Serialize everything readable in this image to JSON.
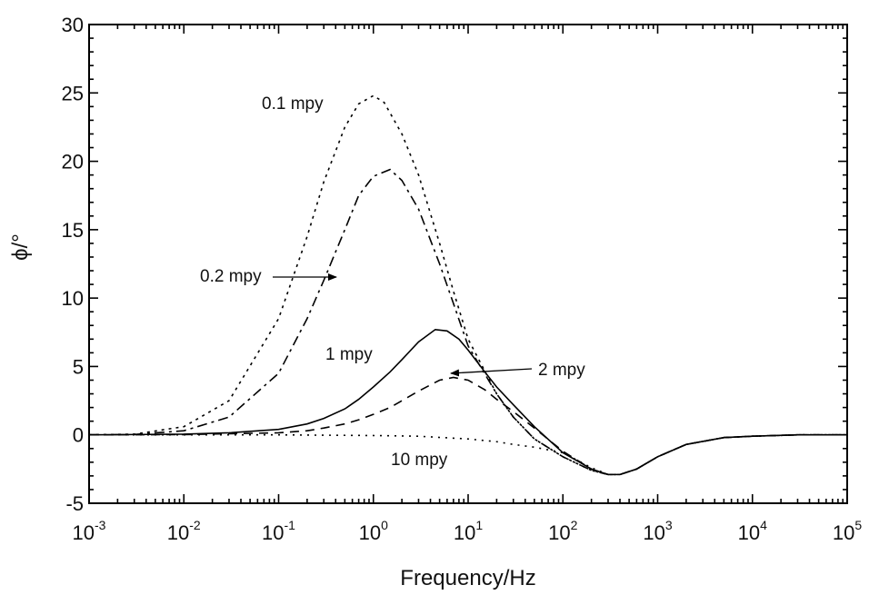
{
  "chart_data": {
    "type": "line",
    "xlabel": "Frequency/Hz",
    "ylabel": "ϕ/°",
    "xscale": "log",
    "xlim": [
      0.001,
      100000
    ],
    "ylim": [
      -5,
      30
    ],
    "grid": false,
    "x_ticks": [
      {
        "base": "10",
        "exp": "-3",
        "value": 0.001
      },
      {
        "base": "10",
        "exp": "-2",
        "value": 0.01
      },
      {
        "base": "10",
        "exp": "-1",
        "value": 0.1
      },
      {
        "base": "10",
        "exp": "0",
        "value": 1
      },
      {
        "base": "10",
        "exp": "1",
        "value": 10
      },
      {
        "base": "10",
        "exp": "2",
        "value": 100
      },
      {
        "base": "10",
        "exp": "3",
        "value": 1000
      },
      {
        "base": "10",
        "exp": "4",
        "value": 10000
      },
      {
        "base": "10",
        "exp": "5",
        "value": 100000
      }
    ],
    "y_ticks": [
      "-5",
      "0",
      "5",
      "10",
      "15",
      "20",
      "25",
      "30"
    ],
    "series": [
      {
        "name": "0.1 mpy",
        "style": "dotted",
        "x": [
          0.001,
          0.003,
          0.01,
          0.03,
          0.1,
          0.2,
          0.3,
          0.5,
          0.7,
          1.0,
          1.3,
          2,
          3,
          5,
          7,
          10,
          20,
          30,
          50,
          100,
          200,
          300,
          400,
          600,
          1000,
          2000,
          5000,
          10000,
          30000,
          100000
        ],
        "y": [
          0,
          0.05,
          0.6,
          2.5,
          8.5,
          14.5,
          18.5,
          22.5,
          24.2,
          24.8,
          24.3,
          22,
          19,
          14,
          10.5,
          7,
          3,
          1.3,
          -0.3,
          -1.6,
          -2.6,
          -2.9,
          -2.9,
          -2.5,
          -1.6,
          -0.7,
          -0.2,
          -0.1,
          0,
          0
        ]
      },
      {
        "name": "0.2 mpy",
        "style": "dash-dot",
        "x": [
          0.001,
          0.003,
          0.01,
          0.03,
          0.1,
          0.2,
          0.3,
          0.5,
          0.7,
          1.0,
          1.5,
          2,
          3,
          5,
          7,
          10,
          20,
          30,
          50,
          100,
          200,
          300,
          400,
          600,
          1000,
          2000,
          5000,
          10000,
          30000,
          100000
        ],
        "y": [
          0,
          0.03,
          0.3,
          1.3,
          4.5,
          8.5,
          11.3,
          15,
          17.5,
          18.9,
          19.4,
          18.6,
          16.5,
          12.5,
          9.6,
          6.5,
          3,
          1.3,
          -0.3,
          -1.6,
          -2.6,
          -2.9,
          -2.9,
          -2.5,
          -1.6,
          -0.7,
          -0.2,
          -0.1,
          0,
          0
        ]
      },
      {
        "name": "1 mpy",
        "style": "solid",
        "x": [
          0.001,
          0.01,
          0.03,
          0.1,
          0.2,
          0.3,
          0.5,
          0.7,
          1.0,
          1.5,
          2,
          3,
          4.5,
          6,
          8,
          10,
          15,
          20,
          30,
          50,
          100,
          200,
          300,
          400,
          600,
          1000,
          2000,
          5000,
          10000,
          30000,
          100000
        ],
        "y": [
          0,
          0.05,
          0.15,
          0.4,
          0.8,
          1.2,
          1.9,
          2.6,
          3.5,
          4.6,
          5.5,
          6.8,
          7.7,
          7.6,
          7,
          6.2,
          4.6,
          3.5,
          2.2,
          0.6,
          -1.3,
          -2.5,
          -2.9,
          -2.9,
          -2.5,
          -1.6,
          -0.7,
          -0.2,
          -0.1,
          0,
          0
        ]
      },
      {
        "name": "2 mpy",
        "style": "dashed",
        "x": [
          0.001,
          0.01,
          0.1,
          0.2,
          0.3,
          0.5,
          0.7,
          1.0,
          1.5,
          2,
          3,
          5,
          7,
          10,
          15,
          20,
          30,
          50,
          100,
          200,
          300,
          400,
          600,
          1000,
          2000,
          5000,
          10000,
          30000,
          100000
        ],
        "y": [
          0,
          0.02,
          0.15,
          0.3,
          0.5,
          0.8,
          1.1,
          1.5,
          2.0,
          2.5,
          3.2,
          4.0,
          4.2,
          4.0,
          3.3,
          2.6,
          1.7,
          0.5,
          -1.2,
          -2.5,
          -2.9,
          -2.9,
          -2.5,
          -1.6,
          -0.7,
          -0.2,
          -0.1,
          0,
          0
        ]
      },
      {
        "name": "10 mpy",
        "style": "fine-dotted",
        "x": [
          0.001,
          0.01,
          0.1,
          1,
          3,
          10,
          20,
          30,
          50,
          100,
          200,
          300,
          400,
          600,
          1000,
          2000,
          5000,
          10000,
          30000,
          100000
        ],
        "y": [
          0,
          0,
          0,
          -0.05,
          -0.1,
          -0.3,
          -0.5,
          -0.7,
          -0.9,
          -1.3,
          -2.4,
          -2.9,
          -2.9,
          -2.5,
          -1.6,
          -0.7,
          -0.2,
          -0.1,
          0,
          0
        ]
      }
    ],
    "annotations": [
      {
        "text": "0.1 mpy",
        "series": "0.1 mpy"
      },
      {
        "text": "0.2 mpy",
        "series": "0.2 mpy"
      },
      {
        "text": "1 mpy",
        "series": "1 mpy"
      },
      {
        "text": "2 mpy",
        "series": "2 mpy"
      },
      {
        "text": "10 mpy",
        "series": "10 mpy"
      }
    ]
  }
}
